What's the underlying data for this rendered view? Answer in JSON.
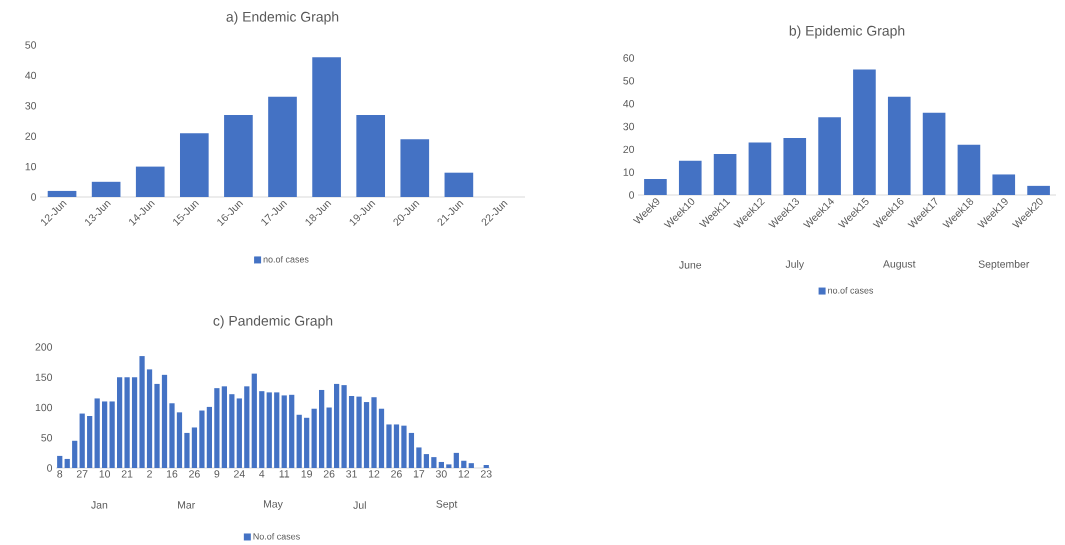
{
  "chart_data": [
    {
      "type": "bar",
      "title": "a) Endemic Graph",
      "categories": [
        "12-Jun",
        "13-Jun",
        "14-Jun",
        "15-Jun",
        "16-Jun",
        "17-Jun",
        "18-Jun",
        "19-Jun",
        "20-Jun",
        "21-Jun",
        "22-Jun"
      ],
      "series": [
        {
          "name": "no.of cases",
          "color": "#4472c4",
          "values": [
            2,
            5,
            10,
            21,
            27,
            33,
            46,
            27,
            19,
            8,
            0
          ]
        }
      ],
      "ylim": [
        0,
        50
      ],
      "yticks": [
        0,
        10,
        20,
        30,
        40,
        50
      ],
      "legend": "bottom"
    },
    {
      "type": "bar",
      "title": "b) Epidemic Graph",
      "categories": [
        "Week9",
        "Week10",
        "Week11",
        "Week12",
        "Week13",
        "Week14",
        "Week15",
        "Week16",
        "Week17",
        "Week18",
        "Week19",
        "Week20"
      ],
      "series": [
        {
          "name": "no.of cases",
          "color": "#4472c4",
          "values": [
            7,
            15,
            18,
            23,
            25,
            34,
            55,
            43,
            36,
            22,
            9,
            4
          ]
        }
      ],
      "ylim": [
        0,
        60
      ],
      "yticks": [
        0,
        10,
        20,
        30,
        40,
        50,
        60
      ],
      "legend": "bottom",
      "annotations": [
        "June",
        "July",
        "August",
        "September"
      ]
    },
    {
      "type": "bar",
      "title": "c) Pandemic Graph",
      "categories": [
        "8",
        null,
        null,
        "27",
        null,
        null,
        "10",
        null,
        null,
        "21",
        null,
        null,
        "2",
        null,
        null,
        "16",
        null,
        null,
        "26",
        null,
        null,
        "9",
        null,
        null,
        "24",
        null,
        null,
        "4",
        null,
        null,
        "11",
        null,
        null,
        "19",
        null,
        null,
        "26",
        null,
        null,
        "31",
        null,
        null,
        "12",
        null,
        null,
        "26",
        null,
        null,
        "17",
        null,
        null,
        "30",
        null,
        null,
        "12",
        null,
        null,
        "23"
      ],
      "series": [
        {
          "name": "No.of cases",
          "color": "#4472c4",
          "values": [
            20,
            15,
            45,
            90,
            86,
            115,
            110,
            110,
            150,
            150,
            150,
            185,
            163,
            139,
            154,
            107,
            92,
            58,
            67,
            95,
            101,
            132,
            135,
            122,
            115,
            135,
            156,
            127,
            125,
            125,
            120,
            121,
            88,
            83,
            98,
            129,
            100,
            139,
            137,
            119,
            118,
            109,
            117,
            98,
            72,
            72,
            70,
            58,
            34,
            23,
            18,
            10,
            6,
            25,
            12,
            8,
            0,
            5
          ]
        }
      ],
      "ylim": [
        0,
        200
      ],
      "yticks": [
        0,
        50,
        100,
        150,
        200
      ],
      "legend": "bottom",
      "annotations": [
        "Jan",
        "Mar",
        "May",
        "Jul",
        "Sept"
      ]
    }
  ]
}
